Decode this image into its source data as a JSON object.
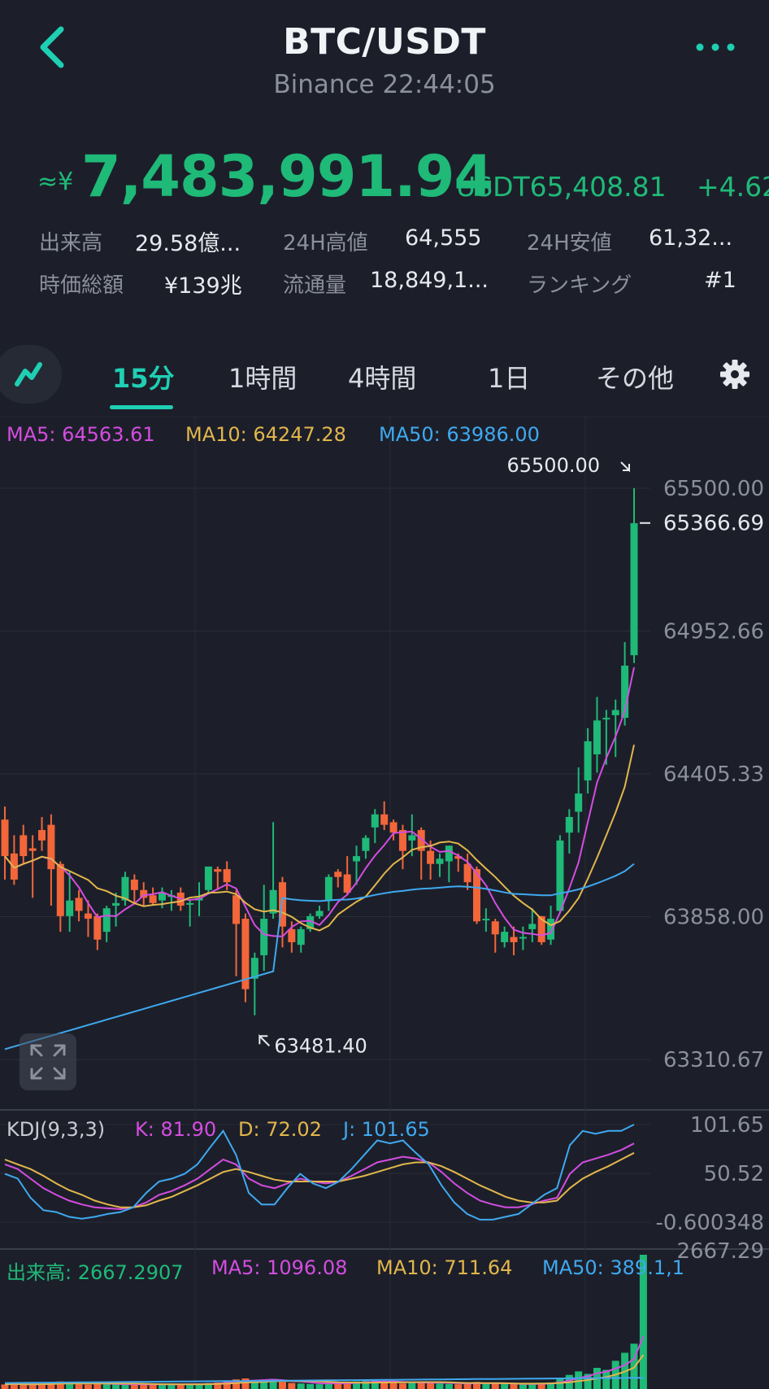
{
  "header": {
    "title": "BTC/USDT",
    "subtitle": "Binance 22:44:05"
  },
  "price": {
    "approx_symbol": "≈¥",
    "jpy": "7,483,991.94",
    "usdt": "USDT65,408.81",
    "change": "+4.62"
  },
  "stats": {
    "volume_label": "出来高",
    "volume_value": "29.58億...",
    "high_label": "24H高値",
    "high_value": "64,555",
    "low_label": "24H安値",
    "low_value": "61,32...",
    "mcap_label": "時価総額",
    "mcap_value": "¥139兆",
    "supply_label": "流通量",
    "supply_value": "18,849,1...",
    "rank_label": "ランキング",
    "rank_value": "#1"
  },
  "tabs": {
    "t15m": "15分",
    "t1h": "1時間",
    "t4h": "4時間",
    "t1d": "1日",
    "other": "その他",
    "active": "15分"
  },
  "colors": {
    "up": "#1fb978",
    "down": "#f2663a",
    "accent": "#1fcfb3",
    "ma5": "#d44de0",
    "ma10": "#e2b64b",
    "ma50": "#3fa9f0",
    "background": "#1c1f2a"
  },
  "icons": {
    "back": "chevron-left-icon",
    "more": "more-dots-icon",
    "line": "line-chart-icon",
    "settings": "gear-icon",
    "expand": "expand-icon"
  },
  "main_legend": {
    "ma5": "MA5: 64563.61",
    "ma10": "MA10: 64247.28",
    "ma50": "MA50: 63986.00"
  },
  "kdj_legend": {
    "label": "KDJ(9,3,3)",
    "k": "K: 81.90",
    "d": "D: 72.02",
    "j": "J: 101.65"
  },
  "vol_legend": {
    "label": "出来高: 2667.2907",
    "ma5": "MA5: 1096.08",
    "ma10": "MA10: 711.64",
    "ma50": "MA50: 389.1,1"
  },
  "chart_data": [
    {
      "type": "candlestick",
      "title": "",
      "ylim": [
        63310.67,
        65500.0
      ],
      "y_ticks": [
        "65500.00",
        "65366.69",
        "64952.66",
        "64405.33",
        "63858.00",
        "63310.67"
      ],
      "current_price_label": "65366.69",
      "max_marker": "65500.00",
      "min_marker": "63481.40",
      "candles": [
        [
          64230,
          64230,
          64090,
          64000,
          64280
        ],
        [
          64100,
          64140,
          64000,
          63980,
          64170
        ],
        [
          64170,
          64150,
          64090,
          64060,
          64210
        ],
        [
          64120,
          64140,
          64110,
          63930,
          64170
        ],
        [
          64190,
          64220,
          64150,
          64110,
          64240
        ],
        [
          64210,
          64190,
          64040,
          63900,
          64250
        ],
        [
          64060,
          64010,
          63860,
          63800,
          64070
        ],
        [
          63860,
          63960,
          63920,
          63800,
          64030
        ],
        [
          63930,
          63950,
          63880,
          63840,
          63960
        ],
        [
          63870,
          63900,
          63850,
          63780,
          63920
        ],
        [
          63860,
          63850,
          63770,
          63730,
          63870
        ],
        [
          63800,
          63810,
          63890,
          63760,
          63900
        ],
        [
          63900,
          63870,
          63910,
          63820,
          63950
        ],
        [
          63920,
          63970,
          64010,
          63900,
          64030
        ],
        [
          64000,
          64010,
          63960,
          63910,
          64020
        ],
        [
          63960,
          63970,
          63930,
          63900,
          63990
        ],
        [
          63940,
          63940,
          63910,
          63900,
          63970
        ],
        [
          63920,
          63950,
          63950,
          63890,
          63970
        ],
        [
          63940,
          63960,
          63940,
          63880,
          63960
        ],
        [
          63950,
          63950,
          63900,
          63880,
          63970
        ],
        [
          63910,
          63920,
          63910,
          63820,
          63920
        ],
        [
          63920,
          63960,
          63930,
          63860,
          63990
        ],
        [
          63960,
          64030,
          64050,
          63950,
          64050
        ],
        [
          64040,
          64000,
          64030,
          63960,
          64050
        ],
        [
          64040,
          64020,
          63990,
          63960,
          64070
        ],
        [
          63940,
          63950,
          63830,
          63630,
          63960
        ],
        [
          63850,
          63870,
          63580,
          63530,
          63870
        ],
        [
          63620,
          63700,
          63700,
          63480,
          63720
        ],
        [
          63710,
          63720,
          63850,
          63650,
          63980
        ],
        [
          63870,
          63900,
          63960,
          63850,
          64220
        ],
        [
          63990,
          63970,
          63820,
          63740,
          64010
        ],
        [
          63810,
          63790,
          63760,
          63720,
          63840
        ],
        [
          63750,
          63790,
          63810,
          63720,
          63820
        ],
        [
          63810,
          63820,
          63860,
          63800,
          63870
        ],
        [
          63860,
          63850,
          63880,
          63850,
          63900
        ],
        [
          63920,
          63920,
          64010,
          63880,
          64020
        ],
        [
          64030,
          64030,
          64010,
          63970,
          64040
        ],
        [
          64020,
          64020,
          63950,
          63940,
          64090
        ],
        [
          64070,
          64050,
          64090,
          63980,
          64130
        ],
        [
          64110,
          64150,
          64160,
          64080,
          64170
        ],
        [
          64200,
          64230,
          64250,
          64140,
          64270
        ],
        [
          64250,
          64260,
          64210,
          64190,
          64300
        ],
        [
          64220,
          64200,
          64180,
          64150,
          64230
        ],
        [
          64190,
          64160,
          64110,
          64040,
          64210
        ],
        [
          64150,
          64110,
          64170,
          64090,
          64250
        ],
        [
          64190,
          64180,
          64110,
          64000,
          64200
        ],
        [
          64110,
          64070,
          64060,
          64000,
          64150
        ],
        [
          64060,
          64080,
          64080,
          64010,
          64100
        ],
        [
          64070,
          64110,
          64130,
          63990,
          64130
        ],
        [
          64090,
          64090,
          64080,
          64030,
          64100
        ],
        [
          64060,
          64070,
          63990,
          63960,
          64100
        ],
        [
          64040,
          64000,
          63840,
          63830,
          64050
        ],
        [
          63850,
          63860,
          63850,
          63800,
          63890
        ],
        [
          63840,
          63830,
          63790,
          63720,
          63850
        ],
        [
          63760,
          63790,
          63800,
          63740,
          63820
        ],
        [
          63780,
          63790,
          63760,
          63710,
          63820
        ],
        [
          63780,
          63780,
          63780,
          63730,
          63820
        ],
        [
          63810,
          63780,
          63830,
          63760,
          63890
        ],
        [
          63860,
          63850,
          63760,
          63750,
          63860
        ],
        [
          63770,
          63800,
          63850,
          63750,
          63900
        ],
        [
          63880,
          63980,
          64150,
          63870,
          64170
        ],
        [
          64180,
          64210,
          64240,
          64100,
          64270
        ],
        [
          64260,
          64280,
          64330,
          64180,
          64430
        ],
        [
          64380,
          64490,
          64530,
          64330,
          64580
        ],
        [
          64480,
          64530,
          64610,
          64410,
          64700
        ],
        [
          64620,
          64620,
          64620,
          64440,
          64650
        ],
        [
          64630,
          64660,
          64650,
          64470,
          64690
        ],
        [
          64620,
          64650,
          64820,
          64590,
          64910
        ],
        [
          64860,
          64900,
          65366,
          64830,
          65500
        ]
      ],
      "ma_values": {
        "ma5": 64563.61,
        "ma10": 64247.28,
        "ma50": 63986.0
      }
    },
    {
      "type": "line",
      "title": "KDJ(9,3,3)",
      "ylim": [
        -0.600348,
        101.65
      ],
      "y_ticks": [
        "101.65",
        "50.52",
        "-0.600348"
      ],
      "series": [
        {
          "name": "K",
          "values": [
            60,
            55,
            45,
            35,
            28,
            22,
            18,
            15,
            14,
            13,
            15,
            20,
            28,
            32,
            38,
            45,
            55,
            65,
            60,
            45,
            38,
            35,
            40,
            45,
            42,
            40,
            42,
            48,
            55,
            62,
            65,
            68,
            66,
            62,
            52,
            40,
            30,
            22,
            18,
            15,
            15,
            18,
            22,
            25,
            50,
            62,
            66,
            70,
            75,
            81.9
          ]
        },
        {
          "name": "D",
          "values": [
            65,
            60,
            55,
            48,
            40,
            33,
            28,
            22,
            18,
            15,
            15,
            17,
            22,
            26,
            32,
            38,
            45,
            52,
            55,
            52,
            48,
            44,
            42,
            42,
            42,
            42,
            42,
            45,
            48,
            52,
            56,
            60,
            62,
            62,
            58,
            52,
            45,
            38,
            32,
            26,
            22,
            20,
            20,
            22,
            35,
            45,
            52,
            58,
            65,
            72.02
          ]
        },
        {
          "name": "J",
          "values": [
            50,
            45,
            25,
            12,
            10,
            5,
            3,
            5,
            8,
            10,
            15,
            30,
            42,
            45,
            50,
            60,
            78,
            95,
            70,
            30,
            18,
            18,
            35,
            50,
            40,
            35,
            42,
            55,
            70,
            85,
            82,
            85,
            72,
            60,
            38,
            20,
            8,
            2,
            2,
            5,
            8,
            18,
            28,
            35,
            80,
            95,
            92,
            95,
            95,
            101.65
          ]
        }
      ]
    },
    {
      "type": "bar",
      "title": "",
      "ylim": [
        0,
        2667.29
      ],
      "y_ticks": [
        "2667.29"
      ],
      "values": [
        90,
        110,
        80,
        95,
        100,
        120,
        150,
        130,
        110,
        90,
        105,
        95,
        100,
        90,
        85,
        80,
        95,
        110,
        100,
        80,
        90,
        105,
        120,
        130,
        160,
        190,
        210,
        150,
        180,
        200,
        140,
        120,
        110,
        100,
        95,
        130,
        120,
        110,
        150,
        160,
        180,
        140,
        120,
        110,
        130,
        150,
        120,
        110,
        100,
        95,
        120,
        140,
        110,
        100,
        105,
        95,
        90,
        110,
        120,
        130,
        200,
        280,
        350,
        300,
        420,
        380,
        560,
        720,
        900,
        2667.29
      ],
      "ma_values": {
        "ma5": 1096.08,
        "ma10": 711.64,
        "ma50": 389.1
      }
    }
  ]
}
